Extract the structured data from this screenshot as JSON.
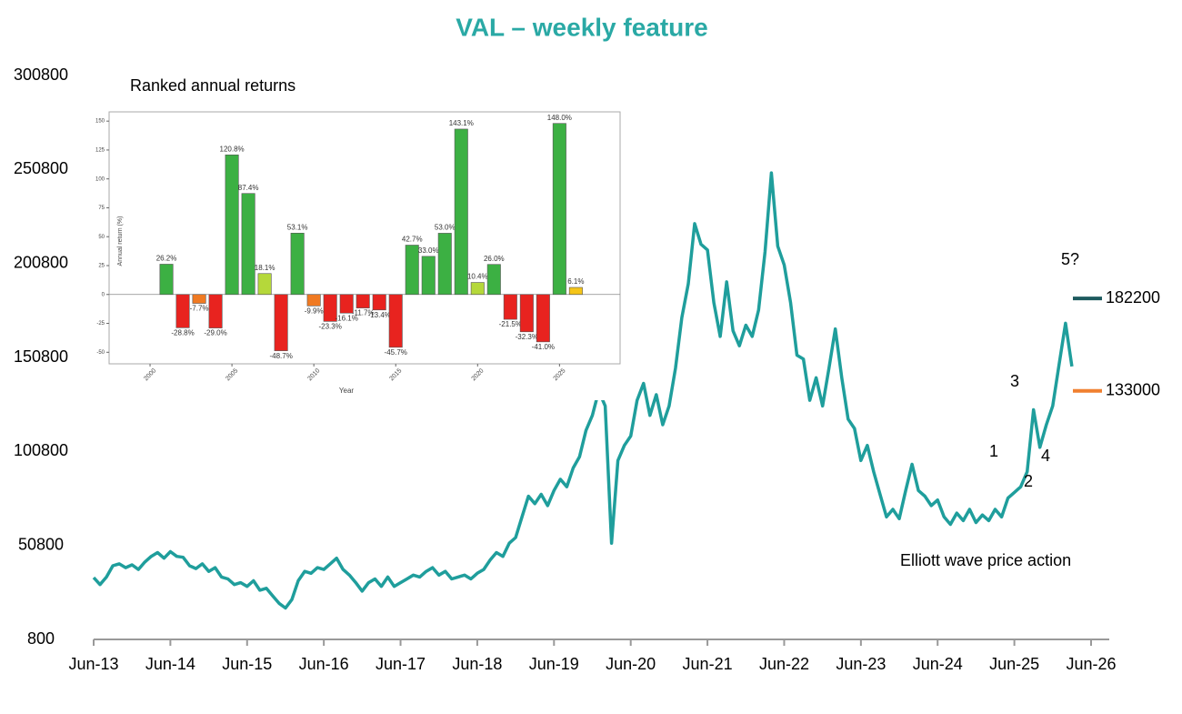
{
  "chart_data": [
    {
      "type": "line",
      "title": "VAL – weekly feature",
      "x": [
        "Jun-13",
        "Jul-13",
        "Aug-13",
        "Sep-13",
        "Oct-13",
        "Nov-13",
        "Dec-13",
        "Jan-14",
        "Feb-14",
        "Mar-14",
        "Apr-14",
        "May-14",
        "Jun-14",
        "Jul-14",
        "Aug-14",
        "Sep-14",
        "Oct-14",
        "Nov-14",
        "Dec-14",
        "Jan-15",
        "Feb-15",
        "Mar-15",
        "Apr-15",
        "May-15",
        "Jun-15",
        "Jul-15",
        "Aug-15",
        "Sep-15",
        "Oct-15",
        "Nov-15",
        "Dec-15",
        "Jan-16",
        "Feb-16",
        "Mar-16",
        "Apr-16",
        "May-16",
        "Jun-16",
        "Jul-16",
        "Aug-16",
        "Sep-16",
        "Oct-16",
        "Nov-16",
        "Dec-16",
        "Jan-17",
        "Feb-17",
        "Mar-17",
        "Apr-17",
        "May-17",
        "Jun-17",
        "Jul-17",
        "Aug-17",
        "Sep-17",
        "Oct-17",
        "Nov-17",
        "Dec-17",
        "Jan-18",
        "Feb-18",
        "Mar-18",
        "Apr-18",
        "May-18",
        "Jun-18",
        "Jul-18",
        "Aug-18",
        "Sep-18",
        "Oct-18",
        "Nov-18",
        "Dec-18",
        "Jan-19",
        "Feb-19",
        "Mar-19",
        "Apr-19",
        "May-19",
        "Jun-19",
        "Jul-19",
        "Aug-19",
        "Sep-19",
        "Oct-19",
        "Nov-19",
        "Dec-19",
        "Jan-20",
        "Feb-20",
        "Mar-20",
        "Apr-20",
        "May-20",
        "Jun-20",
        "Jul-20",
        "Aug-20",
        "Sep-20",
        "Oct-20",
        "Nov-20",
        "Dec-20",
        "Jan-21",
        "Feb-21",
        "Mar-21",
        "Apr-21",
        "May-21",
        "Jun-21",
        "Jul-21",
        "Aug-21",
        "Sep-21",
        "Oct-21",
        "Nov-21",
        "Dec-21",
        "Jan-22",
        "Feb-22",
        "Mar-22",
        "Apr-22",
        "May-22",
        "Jun-22",
        "Jul-22",
        "Aug-22",
        "Sep-22",
        "Oct-22",
        "Nov-22",
        "Dec-22",
        "Jan-23",
        "Feb-23",
        "Mar-23",
        "Apr-23",
        "May-23",
        "Jun-23",
        "Jul-23",
        "Aug-23",
        "Sep-23",
        "Oct-23",
        "Nov-23",
        "Dec-23",
        "Jan-24",
        "Feb-24",
        "Mar-24",
        "Apr-24",
        "May-24",
        "Jun-24",
        "Jul-24",
        "Aug-24",
        "Sep-24",
        "Oct-24",
        "Nov-24",
        "Dec-24",
        "Jan-25",
        "Feb-25",
        "Mar-25",
        "Apr-25",
        "May-25",
        "Jun-25",
        "Jul-25",
        "Aug-25",
        "Sep-25",
        "Oct-25",
        "Nov-25",
        "Dec-25",
        "Jan-26",
        "Feb-26",
        "Mar-26"
      ],
      "series": [
        {
          "color": "#1f9e9c",
          "values": [
            33700,
            30000,
            34000,
            40000,
            41000,
            39000,
            40500,
            38000,
            42000,
            45000,
            47000,
            44000,
            47500,
            45000,
            44500,
            40000,
            38500,
            41000,
            37000,
            39000,
            34000,
            33000,
            30000,
            31000,
            29000,
            32000,
            27000,
            28000,
            24000,
            20000,
            17500,
            22000,
            32000,
            37000,
            36000,
            39000,
            38000,
            41000,
            44000,
            38000,
            35000,
            31000,
            26500,
            31000,
            33000,
            29000,
            34000,
            29000,
            31000,
            33000,
            35000,
            34000,
            37000,
            39000,
            35000,
            37000,
            33000,
            34000,
            35000,
            33000,
            36000,
            38000,
            43000,
            47000,
            45000,
            52000,
            55000,
            66000,
            77000,
            73000,
            78000,
            72000,
            80000,
            86000,
            82000,
            92000,
            98000,
            112000,
            120000,
            133000,
            125000,
            52000,
            96000,
            104000,
            109000,
            128000,
            137000,
            120000,
            131000,
            115000,
            125000,
            145000,
            172000,
            190000,
            222000,
            211000,
            208000,
            180000,
            162000,
            191000,
            165000,
            157000,
            168000,
            162000,
            176000,
            207000,
            249000,
            210000,
            200000,
            180000,
            152000,
            150000,
            128000,
            140000,
            125000,
            145000,
            166000,
            140000,
            118000,
            113000,
            96000,
            104000,
            90000,
            78000,
            66000,
            70000,
            65000,
            80000,
            94000,
            80000,
            77000,
            72000,
            75000,
            66000,
            62000,
            68000,
            64000,
            70000,
            63000,
            67000,
            64000,
            70000,
            66000,
            76000,
            79000,
            82000,
            90000,
            123000,
            103000,
            115000,
            125000,
            147000,
            169000,
            146000
          ]
        }
      ],
      "ylim": [
        800,
        300800
      ],
      "yticks": [
        800,
        50800,
        100800,
        150800,
        200800,
        250800,
        300800
      ],
      "xticks": [
        "Jun-13",
        "Jun-14",
        "Jun-15",
        "Jun-16",
        "Jun-17",
        "Jun-18",
        "Jun-19",
        "Jun-20",
        "Jun-21",
        "Jun-22",
        "Jun-23",
        "Jun-24",
        "Jun-25",
        "Jun-26"
      ],
      "targets": [
        {
          "value": 182200,
          "color": "#1d5a5e"
        },
        {
          "value": 133000,
          "color": "#f08030"
        }
      ],
      "annotations": [
        "1",
        "2",
        "3",
        "4",
        "5?",
        "Elliott wave price action"
      ]
    },
    {
      "type": "bar",
      "title": "Ranked annual returns",
      "xlabel": "Year",
      "ylabel": "Annual return (%)",
      "x": [
        2001,
        2002,
        2003,
        2004,
        2005,
        2006,
        2007,
        2008,
        2009,
        2010,
        2011,
        2012,
        2013,
        2014,
        2015,
        2016,
        2017,
        2018,
        2019,
        2020,
        2021,
        2022,
        2023,
        2024,
        2025,
        2026
      ],
      "values": [
        26.2,
        -28.8,
        -7.7,
        -29.0,
        120.8,
        87.4,
        18.1,
        -48.7,
        53.1,
        -9.9,
        -23.3,
        -16.1,
        -11.7,
        -13.4,
        -45.7,
        42.7,
        33.0,
        53.0,
        143.1,
        10.4,
        26.0,
        -21.5,
        -32.3,
        -41.0,
        148.0,
        6.1
      ],
      "value_labels": [
        "26.2%",
        "-28.8%",
        "-7.7%",
        "-29.0%",
        "120.8%",
        "87.4%",
        "18.1%",
        "-48.7%",
        "53.1%",
        "-9.9%",
        "-23.3%",
        "-16.1%",
        "-11.7%",
        "-13.4%",
        "-45.7%",
        "42.7%",
        "33.0%",
        "53.0%",
        "143.1%",
        "10.4%",
        "26.0%",
        "-21.5%",
        "-32.3%",
        "-41.0%",
        "148.0%",
        "6.1%"
      ],
      "colors": [
        "#3cb043",
        "#e8231f",
        "#f07a22",
        "#e8231f",
        "#3cb043",
        "#3cb043",
        "#b5d83a",
        "#e8231f",
        "#3cb043",
        "#f07a22",
        "#e8231f",
        "#e8231f",
        "#e8231f",
        "#e8231f",
        "#e8231f",
        "#3cb043",
        "#3cb043",
        "#3cb043",
        "#3cb043",
        "#b5d83a",
        "#3cb043",
        "#e8231f",
        "#e8231f",
        "#e8231f",
        "#3cb043",
        "#f5c518"
      ],
      "xlim": [
        1997.5,
        2028.7
      ],
      "ylim": [
        -60,
        158
      ],
      "xticks": [
        2000,
        2005,
        2010,
        2015,
        2020,
        2025
      ],
      "yticks": [
        -50,
        -25,
        0,
        25,
        50,
        75,
        100,
        125,
        150
      ]
    }
  ]
}
